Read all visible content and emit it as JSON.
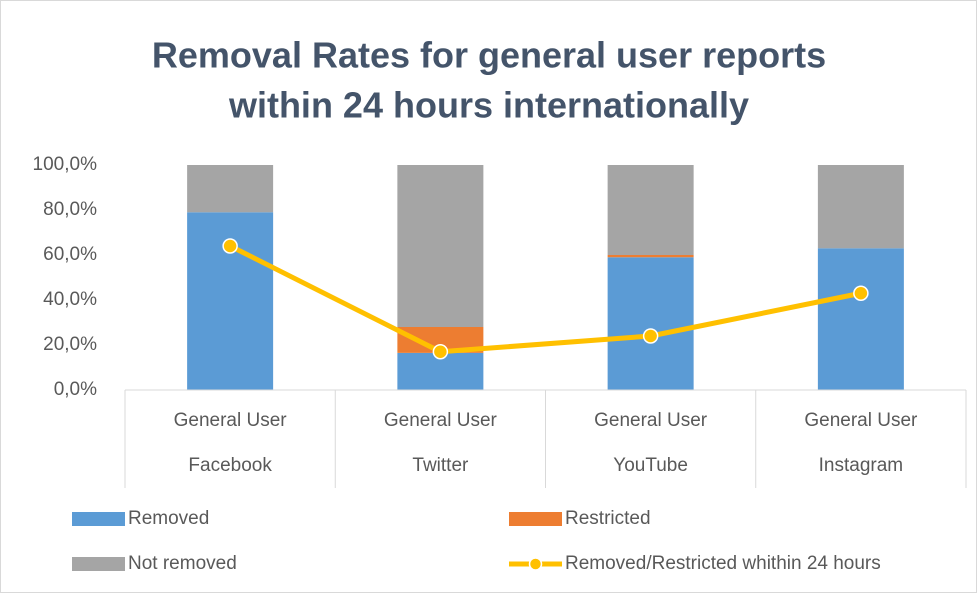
{
  "chart_data": {
    "type": "bar",
    "stacked": true,
    "title": [
      "Removal Rates for general user reports",
      "within 24 hours internationally"
    ],
    "sub_categories": [
      "General User",
      "General User",
      "General User",
      "General User"
    ],
    "categories": [
      "Facebook",
      "Twitter",
      "YouTube",
      "Instagram"
    ],
    "series": [
      {
        "name": "Removed",
        "type": "bar",
        "color": "#5b9bd5",
        "values": [
          79,
          16.5,
          59,
          63
        ]
      },
      {
        "name": "Restricted",
        "type": "bar",
        "color": "#ed7d31",
        "values": [
          0,
          11.5,
          1,
          0
        ]
      },
      {
        "name": "Not removed",
        "type": "bar",
        "color": "#a5a5a5",
        "values": [
          21,
          72,
          40,
          37
        ]
      },
      {
        "name": "Removed/Restricted whithin 24 hours",
        "type": "line",
        "color": "#ffc000",
        "values": [
          64,
          17,
          24,
          43
        ]
      }
    ],
    "ylim": [
      0,
      100
    ],
    "yticks": [
      {
        "value": 0,
        "label": "0,0%"
      },
      {
        "value": 20,
        "label": "20,0%"
      },
      {
        "value": 40,
        "label": "40,0%"
      },
      {
        "value": 60,
        "label": "60,0%"
      },
      {
        "value": 80,
        "label": "80,0%"
      },
      {
        "value": 100,
        "label": "100,0%"
      }
    ],
    "grid": false,
    "legend": "bottom"
  }
}
